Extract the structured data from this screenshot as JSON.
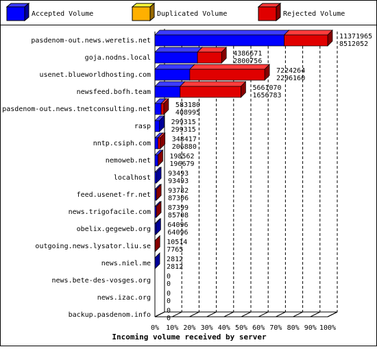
{
  "chart_data": {
    "type": "bar3d",
    "legend": [
      {
        "name": "Accepted Volume",
        "color": "#0000ff"
      },
      {
        "name": "Duplicated Volume",
        "color": "#ffb000"
      },
      {
        "name": "Rejected Volume",
        "color": "#e00000"
      }
    ],
    "categories": [
      "pasdenom-out.news.weretis.net",
      "goja.nodns.local",
      "usenet.blueworldhosting.com",
      "newsfeed.bofh.team",
      "pasdenom-out.news.tnetconsulting.net",
      "rasp",
      "nntp.csiph.com",
      "nemoweb.net",
      "localhost",
      "feed.usenet-fr.net",
      "news.trigofacile.com",
      "obelix.gegeweb.org",
      "outgoing.news.lysator.liu.se",
      "news.niel.me",
      "news.bete-des-vosges.org",
      "news.izac.org",
      "backup.pasdenom.info"
    ],
    "totals": [
      11371965,
      4386671,
      7224264,
      5661070,
      583180,
      299315,
      348417,
      198562,
      93493,
      93782,
      87399,
      64096,
      10514,
      2812,
      0,
      0,
      0
    ],
    "series": [
      {
        "name": "Accepted Volume",
        "color": "#0000ff",
        "values": [
          8512052,
          2800756,
          2296160,
          1656783,
          408995,
          299315,
          206880,
          196679,
          93493,
          87306,
          85708,
          64096,
          7765,
          2812,
          0,
          0,
          0
        ]
      },
      {
        "name": "Rejected Volume",
        "color": "#e00000",
        "values": [
          2859913,
          1585915,
          4928104,
          4004287,
          174185,
          0,
          141537,
          1883,
          0,
          6476,
          1691,
          0,
          2749,
          0,
          0,
          0,
          0
        ]
      }
    ],
    "xlim": [
      0,
      100
    ],
    "xticks": [
      {
        "value": 0,
        "label": "0%"
      },
      {
        "value": 10,
        "label": "10%"
      },
      {
        "value": 20,
        "label": "20%"
      },
      {
        "value": 30,
        "label": "30%"
      },
      {
        "value": 40,
        "label": "40%"
      },
      {
        "value": 50,
        "label": "50%"
      },
      {
        "value": 60,
        "label": "60%"
      },
      {
        "value": 70,
        "label": "70%"
      },
      {
        "value": 80,
        "label": "80%"
      },
      {
        "value": 90,
        "label": "90%"
      },
      {
        "value": 100,
        "label": "100%"
      }
    ],
    "xlabel": "Incoming volume received by server",
    "grid": true
  }
}
